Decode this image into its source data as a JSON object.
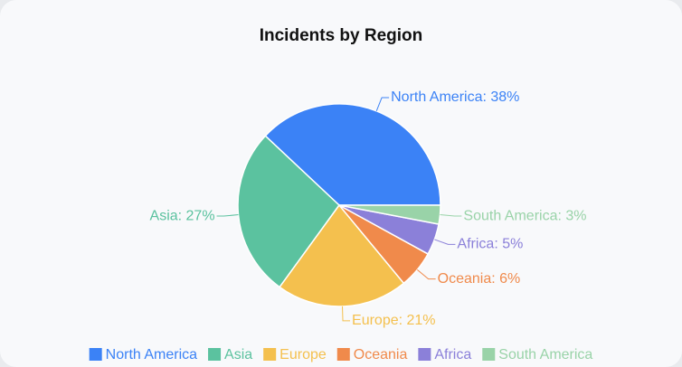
{
  "chart_data": {
    "type": "pie",
    "title": "Incidents by Region",
    "categories": [
      "North America",
      "Asia",
      "Europe",
      "Oceania",
      "Africa",
      "South America"
    ],
    "values": [
      38,
      27,
      21,
      6,
      5,
      3
    ],
    "value_labels": [
      "North America: 38%",
      "Asia: 27%",
      "Europe: 21%",
      "Oceania: 6%",
      "Africa: 5%",
      "South America: 3%"
    ],
    "colors": [
      "#3b82f6",
      "#5bc29f",
      "#f4c04e",
      "#f08a4b",
      "#8b80d9",
      "#99d3a8"
    ],
    "legend": "bottom"
  }
}
